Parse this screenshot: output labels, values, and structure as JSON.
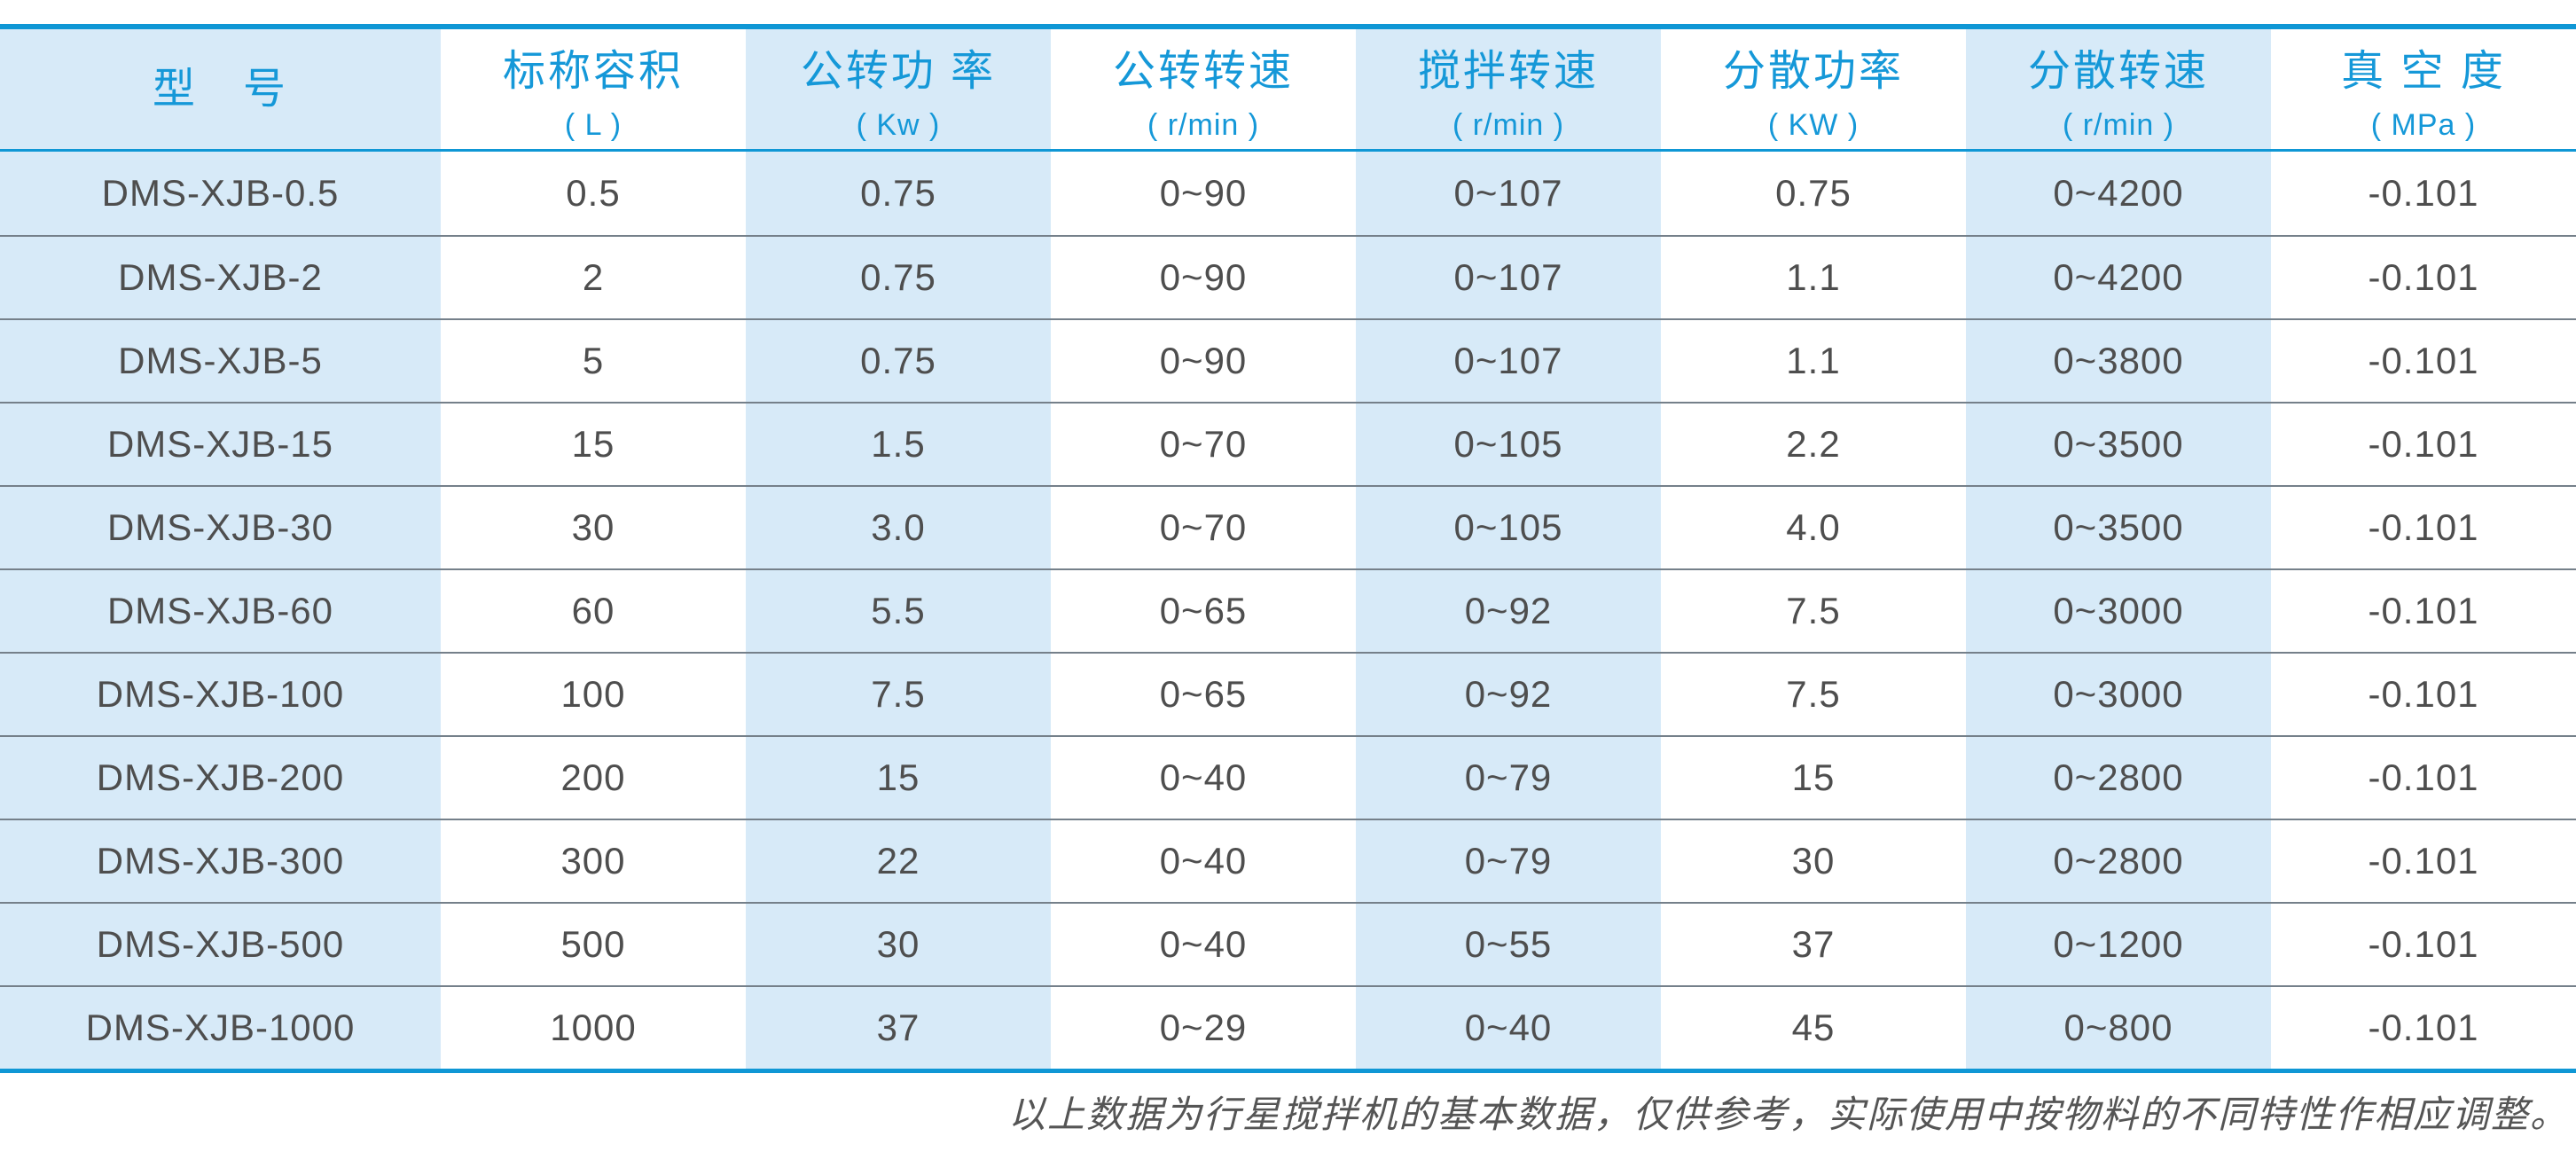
{
  "colors": {
    "accent_line": "#0f97d5",
    "header_text": "#1598d8",
    "stripe_bg": "#d7eaf8",
    "row_line": "#75808a",
    "cell_text": "#4e4e4e",
    "note_text": "#555555"
  },
  "table": {
    "columns": [
      {
        "label": "型　号",
        "unit": ""
      },
      {
        "label": "标称容积",
        "unit": "( L )"
      },
      {
        "label": "公转功 率",
        "unit": "( Kw )"
      },
      {
        "label": "公转转速",
        "unit": "( r/min )"
      },
      {
        "label": "搅拌转速",
        "unit": "( r/min )"
      },
      {
        "label": "分散功率",
        "unit": "( KW )"
      },
      {
        "label": "分散转速",
        "unit": "( r/min )"
      },
      {
        "label": "真 空 度",
        "unit": "( MPa )"
      }
    ],
    "rows": [
      {
        "cells": [
          "DMS-XJB-0.5",
          "0.5",
          "0.75",
          "0~90",
          "0~107",
          "0.75",
          "0~4200",
          "-0.101"
        ]
      },
      {
        "cells": [
          "DMS-XJB-2",
          "2",
          "0.75",
          "0~90",
          "0~107",
          "1.1",
          "0~4200",
          "-0.101"
        ]
      },
      {
        "cells": [
          "DMS-XJB-5",
          "5",
          "0.75",
          "0~90",
          "0~107",
          "1.1",
          "0~3800",
          "-0.101"
        ]
      },
      {
        "cells": [
          "DMS-XJB-15",
          "15",
          "1.5",
          "0~70",
          "0~105",
          "2.2",
          "0~3500",
          "-0.101"
        ]
      },
      {
        "cells": [
          "DMS-XJB-30",
          "30",
          "3.0",
          "0~70",
          "0~105",
          "4.0",
          "0~3500",
          "-0.101"
        ]
      },
      {
        "cells": [
          "DMS-XJB-60",
          "60",
          "5.5",
          "0~65",
          "0~92",
          "7.5",
          "0~3000",
          "-0.101"
        ]
      },
      {
        "cells": [
          "DMS-XJB-100",
          "100",
          "7.5",
          "0~65",
          "0~92",
          "7.5",
          "0~3000",
          "-0.101"
        ]
      },
      {
        "cells": [
          "DMS-XJB-200",
          "200",
          "15",
          "0~40",
          "0~79",
          "15",
          "0~2800",
          "-0.101"
        ]
      },
      {
        "cells": [
          "DMS-XJB-300",
          "300",
          "22",
          "0~40",
          "0~79",
          "30",
          "0~2800",
          "-0.101"
        ]
      },
      {
        "cells": [
          "DMS-XJB-500",
          "500",
          "30",
          "0~40",
          "0~55",
          "37",
          "0~1200",
          "-0.101"
        ]
      },
      {
        "cells": [
          "DMS-XJB-1000",
          "1000",
          "37",
          "0~29",
          "0~40",
          "45",
          "0~800",
          "-0.101"
        ]
      }
    ]
  },
  "footnote": "以上数据为行星搅拌机的基本数据，仅供参考，实际使用中按物料的不同特性作相应调整。"
}
